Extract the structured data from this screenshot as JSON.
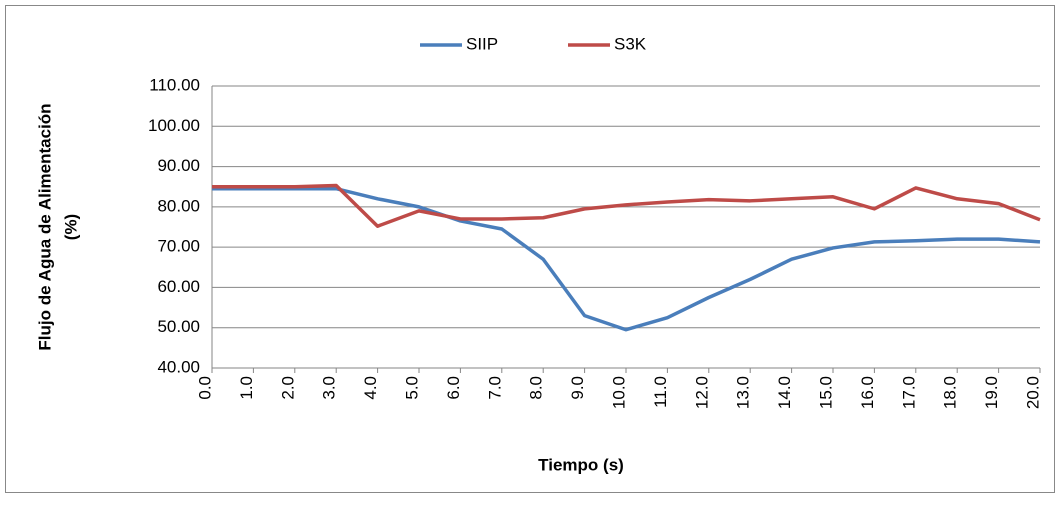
{
  "chart_data": {
    "type": "line",
    "x_label": "Tiempo (s)",
    "y_label": [
      "Flujo de Agua de Alimentación",
      "(%)"
    ],
    "categories": [
      "0.0",
      "1.0",
      "2.0",
      "3.0",
      "4.0",
      "5.0",
      "6.0",
      "7.0",
      "8.0",
      "9.0",
      "10.0",
      "11.0",
      "12.0",
      "13.0",
      "14.0",
      "15.0",
      "16.0",
      "17.0",
      "18.0",
      "19.0",
      "20.0"
    ],
    "series": [
      {
        "name": "SIIP",
        "color": "#4a7ebb",
        "values": [
          84.5,
          84.5,
          84.5,
          84.5,
          82,
          80,
          76.5,
          74.5,
          67,
          53,
          49.5,
          52.5,
          57.5,
          62,
          67,
          69.8,
          71.3,
          71.6,
          72,
          72,
          71.3
        ]
      },
      {
        "name": "S3K",
        "color": "#be4b48",
        "values": [
          85,
          85,
          85,
          85.3,
          75.2,
          79,
          77,
          77,
          77.3,
          79.5,
          80.5,
          81.2,
          81.8,
          81.5,
          82,
          82.5,
          79.5,
          84.7,
          82,
          80.8,
          76.8
        ]
      }
    ],
    "ylim": [
      40,
      110
    ],
    "yticks": [
      {
        "value": 40,
        "label": "40.00"
      },
      {
        "value": 50,
        "label": "50.00"
      },
      {
        "value": 60,
        "label": "60.00"
      },
      {
        "value": 70,
        "label": "70.00"
      },
      {
        "value": 80,
        "label": "80.00"
      },
      {
        "value": 90,
        "label": "90.00"
      },
      {
        "value": 100,
        "label": "100.00"
      },
      {
        "value": 110,
        "label": "110.00"
      }
    ],
    "grid": true,
    "legend": "top"
  }
}
